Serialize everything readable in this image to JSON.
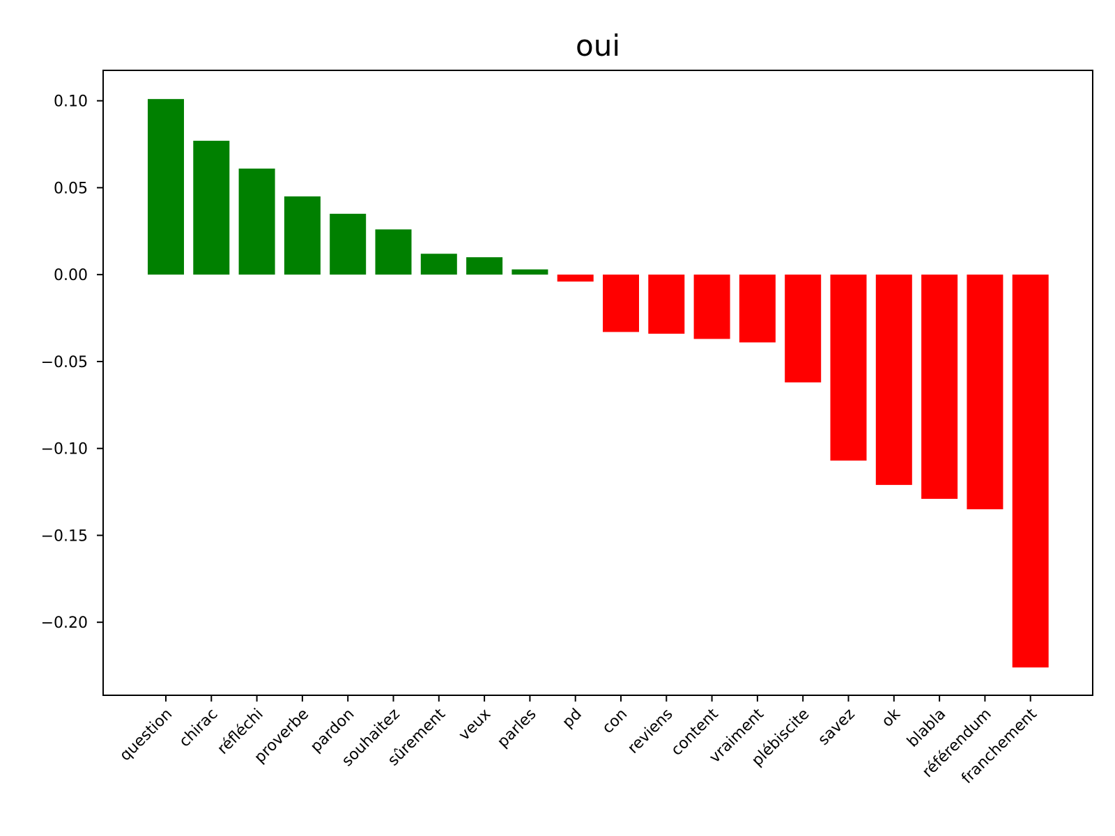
{
  "chart_data": {
    "type": "bar",
    "title": "oui",
    "xlabel": "",
    "ylabel": "",
    "categories": [
      "question",
      "chirac",
      "réfléchi",
      "proverbe",
      "pardon",
      "souhaitez",
      "sûrement",
      "veux",
      "parles",
      "pd",
      "con",
      "reviens",
      "content",
      "vraiment",
      "plébiscite",
      "savez",
      "ok",
      "blabla",
      "référendum",
      "franchement"
    ],
    "values": [
      0.101,
      0.077,
      0.061,
      0.045,
      0.035,
      0.026,
      0.012,
      0.01,
      0.003,
      -0.004,
      -0.033,
      -0.034,
      -0.037,
      -0.039,
      -0.062,
      -0.107,
      -0.121,
      -0.129,
      -0.135,
      -0.226
    ],
    "ylim": [
      -0.242,
      0.1175
    ],
    "yticks": [
      0.1,
      0.05,
      0.0,
      -0.05,
      -0.1,
      -0.15,
      -0.2
    ],
    "ytick_labels": [
      "0.10",
      "0.05",
      "0.00",
      "−0.05",
      "−0.10",
      "−0.15",
      "−0.20"
    ],
    "positive_color": "#008000",
    "negative_color": "#ff0000",
    "grid": false,
    "legend": "none"
  }
}
